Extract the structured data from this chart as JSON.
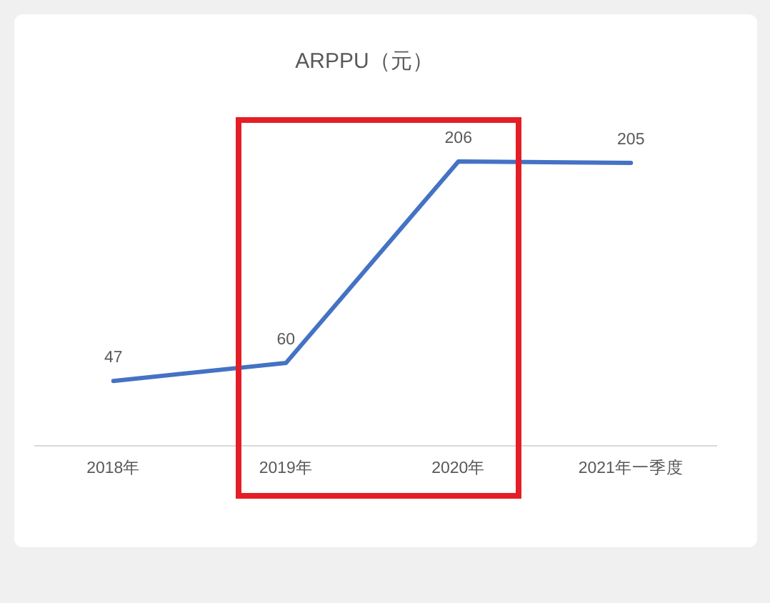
{
  "chart_data": {
    "type": "line",
    "title": "ARPPU（元）",
    "categories": [
      "2018年",
      "2019年",
      "2020年",
      "2021年一季度"
    ],
    "series": [
      {
        "color": "#4472c4",
        "values": [
          47,
          60,
          206,
          205
        ]
      }
    ],
    "tick_labels": "x",
    "data_labels": true,
    "marker": "none",
    "line_style": "solid"
  }
}
